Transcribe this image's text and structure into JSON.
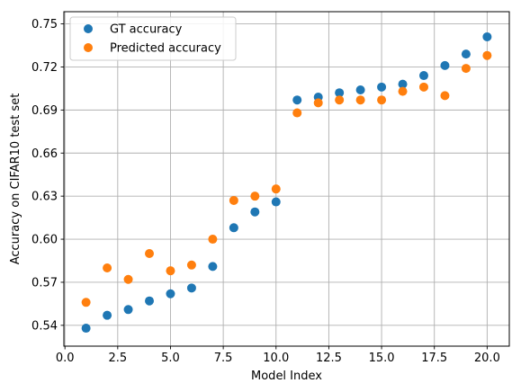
{
  "chart_data": {
    "type": "scatter",
    "title": "",
    "xlabel": "Model Index",
    "ylabel": "Accuracy on CIFAR10 test set",
    "xlim": [
      -0.05,
      21.05
    ],
    "ylim": [
      0.5255,
      0.7585
    ],
    "xticks": [
      0.0,
      2.5,
      5.0,
      7.5,
      10.0,
      12.5,
      15.0,
      17.5,
      20.0
    ],
    "xtick_labels": [
      "0.0",
      "2.5",
      "5.0",
      "7.5",
      "10.0",
      "12.5",
      "15.0",
      "17.5",
      "20.0"
    ],
    "yticks": [
      0.54,
      0.57,
      0.6,
      0.63,
      0.66,
      0.69,
      0.72,
      0.75
    ],
    "ytick_labels": [
      "0.54",
      "0.57",
      "0.60",
      "0.63",
      "0.66",
      "0.69",
      "0.72",
      "0.75"
    ],
    "grid": true,
    "legend_position": "top-left",
    "x": [
      1,
      2,
      3,
      4,
      5,
      6,
      7,
      8,
      9,
      10,
      11,
      12,
      13,
      14,
      15,
      16,
      17,
      18,
      19,
      20
    ],
    "series": [
      {
        "name": "GT accuracy",
        "color": "#1f77b4",
        "values": [
          0.538,
          0.547,
          0.551,
          0.557,
          0.562,
          0.566,
          0.581,
          0.608,
          0.619,
          0.626,
          0.697,
          0.699,
          0.702,
          0.704,
          0.706,
          0.708,
          0.714,
          0.721,
          0.729,
          0.741
        ]
      },
      {
        "name": "Predicted accuracy",
        "color": "#ff7f0e",
        "values": [
          0.556,
          0.58,
          0.572,
          0.59,
          0.578,
          0.582,
          0.6,
          0.627,
          0.63,
          0.635,
          0.688,
          0.695,
          0.697,
          0.697,
          0.697,
          0.703,
          0.706,
          0.7,
          0.719,
          0.728
        ]
      }
    ]
  }
}
